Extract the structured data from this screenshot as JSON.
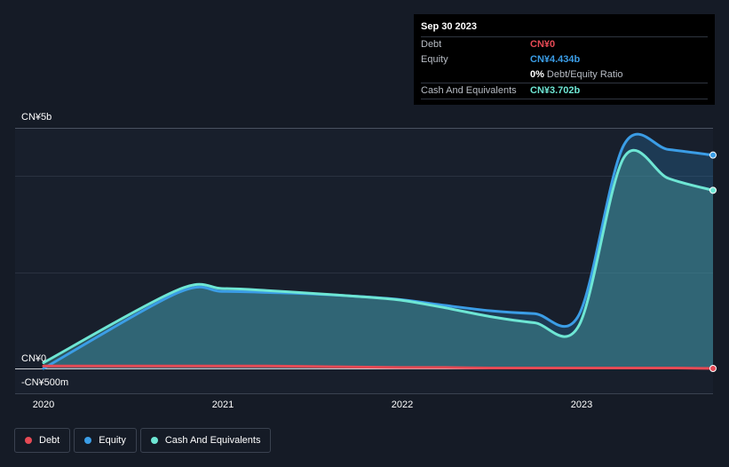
{
  "tooltip": {
    "date": "Sep 30 2023",
    "rows": [
      {
        "name": "Debt",
        "value": "CN¥0",
        "color": "#e64a55"
      },
      {
        "name": "Equity",
        "value": "CN¥4.434b",
        "color": "#3b9de6"
      },
      {
        "name": "",
        "value": "0%",
        "suffix": "Debt/Equity Ratio",
        "color": "#ffffff"
      },
      {
        "name": "Cash And Equivalents",
        "value": "CN¥3.702b",
        "color": "#6ee6d4"
      }
    ]
  },
  "axis": {
    "y_top_label": "CN¥5b",
    "y_zero_label": "CN¥0",
    "y_bottom_label": "-CN¥500m"
  },
  "legend": [
    {
      "label": "Debt",
      "color": "#e64a55"
    },
    {
      "label": "Equity",
      "color": "#3b9de6"
    },
    {
      "label": "Cash And Equivalents",
      "color": "#6ee6d4"
    }
  ],
  "chart_data": {
    "type": "area",
    "x_tick_labels": [
      "2020",
      "2021",
      "2022",
      "2023"
    ],
    "ylim": [
      -0.5,
      5.0
    ],
    "y_unit": "CN¥ billions",
    "grid": true,
    "series": [
      {
        "name": "Debt",
        "color": "#e64a55",
        "x": [
          2020.0,
          2020.75,
          2021.0,
          2021.25,
          2021.5,
          2021.75,
          2022.0,
          2022.25,
          2022.5,
          2022.75,
          2023.0,
          2023.25,
          2023.5,
          2023.75
        ],
        "values": [
          0.05,
          0.05,
          0.05,
          0.05,
          0.04,
          0.03,
          0.02,
          0.02,
          0.01,
          0.01,
          0.01,
          0.01,
          0.01,
          0.0
        ]
      },
      {
        "name": "Equity",
        "color": "#3b9de6",
        "x": [
          2020.0,
          2020.75,
          2021.0,
          2021.25,
          2021.5,
          2021.75,
          2022.0,
          2022.25,
          2022.5,
          2022.75,
          2023.0,
          2023.25,
          2023.5,
          2023.75
        ],
        "values": [
          0.0,
          1.57,
          1.6,
          1.58,
          1.55,
          1.5,
          1.43,
          1.31,
          1.2,
          1.14,
          1.12,
          4.64,
          4.55,
          4.434
        ]
      },
      {
        "name": "Cash And Equivalents",
        "color": "#6ee6d4",
        "x": [
          2020.0,
          2020.75,
          2021.0,
          2021.25,
          2021.5,
          2021.75,
          2022.0,
          2022.25,
          2022.5,
          2022.75,
          2023.0,
          2023.25,
          2023.5,
          2023.75
        ],
        "values": [
          0.12,
          1.63,
          1.66,
          1.62,
          1.56,
          1.5,
          1.42,
          1.26,
          1.08,
          0.95,
          0.9,
          4.38,
          3.95,
          3.702
        ]
      }
    ]
  }
}
